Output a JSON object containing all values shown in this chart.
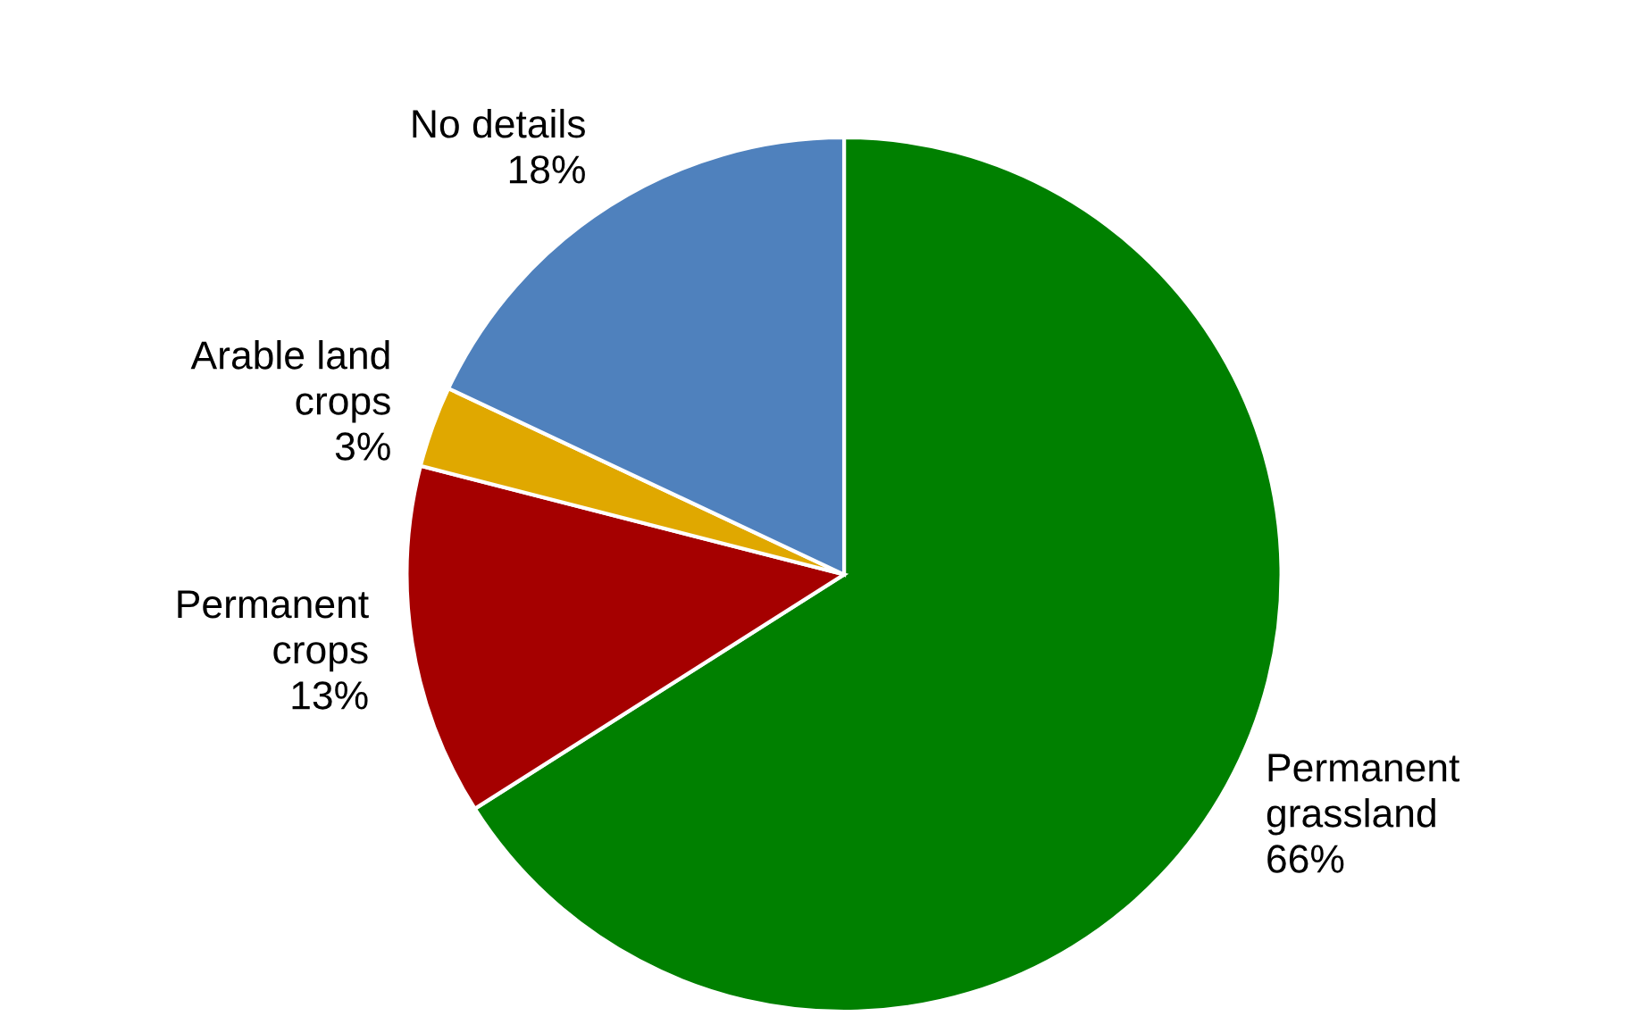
{
  "chart_data": {
    "type": "pie",
    "categories": [
      "Permanent\ngrassland",
      "Permanent\ncrops",
      "Arable land\ncrops",
      "No details"
    ],
    "values": [
      66,
      13,
      3,
      18
    ],
    "value_labels": [
      "66%",
      "13%",
      "3%",
      "18%"
    ],
    "colors": [
      "#008000",
      "#a50000",
      "#e0a800",
      "#4f81bd"
    ],
    "legend": false
  }
}
